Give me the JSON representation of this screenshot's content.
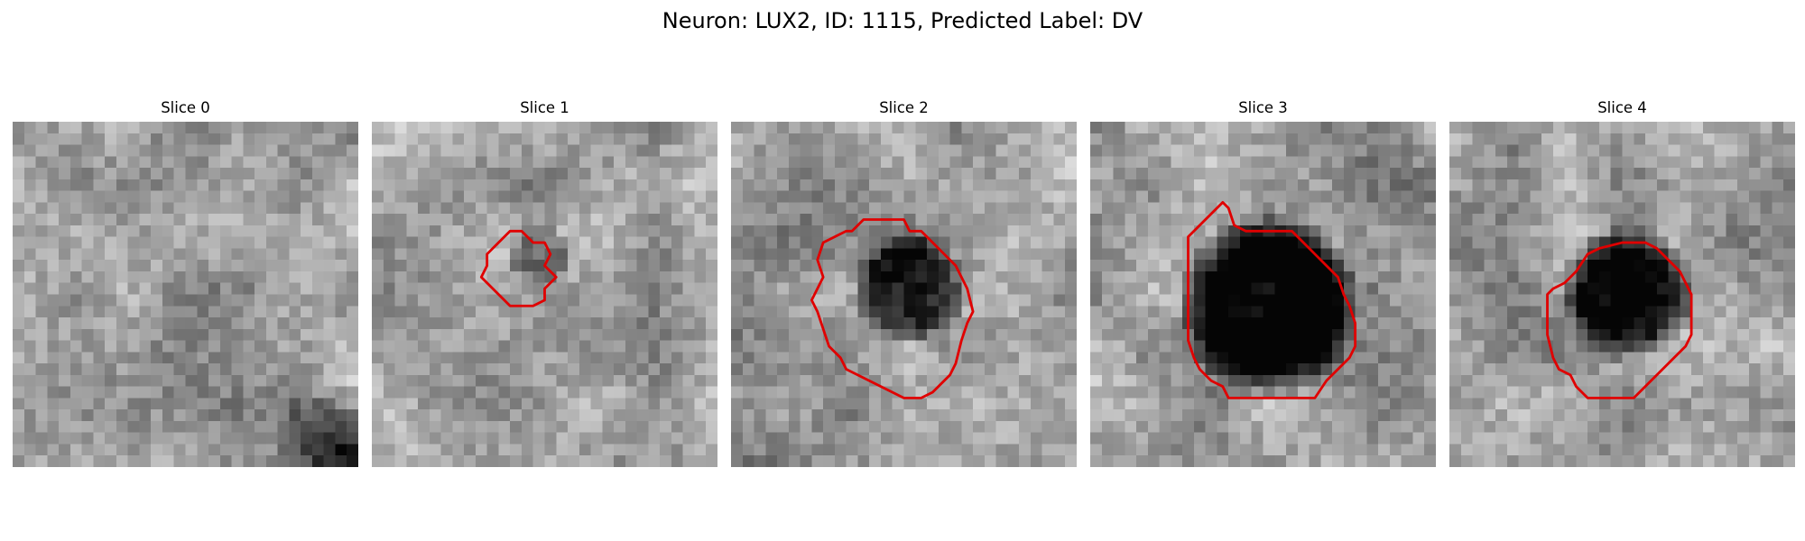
{
  "figure": {
    "title": "Neuron: LUX2, ID: 1115, Predicted Label: DV",
    "outline_color": "#e00000",
    "colormap": "grayscale",
    "panels": [
      {
        "title": "Slice 0",
        "blob": null,
        "contour": null,
        "dark_corner": true
      },
      {
        "title": "Slice 1",
        "blob": {
          "cx": 14.5,
          "cy": 11.5,
          "r": 2.8,
          "strength": 0.28
        },
        "contour": [
          [
            10,
            11.5
          ],
          [
            11,
            10.5
          ],
          [
            12,
            9.5
          ],
          [
            13,
            9.5
          ],
          [
            14,
            10.5
          ],
          [
            15,
            10.5
          ],
          [
            15.5,
            11.5
          ],
          [
            15,
            12.5
          ],
          [
            16,
            13.5
          ],
          [
            15,
            14.5
          ],
          [
            15,
            15.5
          ],
          [
            14,
            16
          ],
          [
            13,
            16
          ],
          [
            12,
            16
          ],
          [
            11,
            15
          ],
          [
            10,
            14
          ],
          [
            9.5,
            13.5
          ],
          [
            10,
            12.5
          ]
        ]
      },
      {
        "title": "Slice 2",
        "blob": {
          "cx": 15.5,
          "cy": 14.5,
          "r": 5.0,
          "strength": 0.55
        },
        "contour": [
          [
            10.5,
            9.5
          ],
          [
            11.5,
            8.5
          ],
          [
            12.5,
            8.5
          ],
          [
            14,
            8.5
          ],
          [
            15,
            8.5
          ],
          [
            15.5,
            9.5
          ],
          [
            16.5,
            9.5
          ],
          [
            17.5,
            10.5
          ],
          [
            18.5,
            11.5
          ],
          [
            19.5,
            12.5
          ],
          [
            20.5,
            14.5
          ],
          [
            21,
            16.5
          ],
          [
            20.5,
            17.5
          ],
          [
            20,
            19
          ],
          [
            19.5,
            21
          ],
          [
            19,
            22
          ],
          [
            18.5,
            22.5
          ],
          [
            17.5,
            23.5
          ],
          [
            16.5,
            24
          ],
          [
            15,
            24
          ],
          [
            14,
            23.5
          ],
          [
            13,
            23
          ],
          [
            12,
            22.5
          ],
          [
            11,
            22
          ],
          [
            10,
            21.5
          ],
          [
            9.5,
            20.5
          ],
          [
            8.5,
            19.5
          ],
          [
            8,
            18
          ],
          [
            7.5,
            16.5
          ],
          [
            7,
            15.5
          ],
          [
            7.5,
            14.5
          ],
          [
            8,
            13.5
          ],
          [
            7.5,
            12
          ],
          [
            8,
            10.5
          ],
          [
            9,
            10
          ],
          [
            10,
            9.5
          ]
        ]
      },
      {
        "title": "Slice 3",
        "blob": {
          "cx": 15.5,
          "cy": 16.0,
          "r": 8.0,
          "strength": 0.72
        },
        "contour": [
          [
            8.5,
            10
          ],
          [
            9.5,
            9
          ],
          [
            10.5,
            8
          ],
          [
            11.5,
            7
          ],
          [
            12,
            7.5
          ],
          [
            12.5,
            9
          ],
          [
            13.5,
            9.5
          ],
          [
            15,
            9.5
          ],
          [
            17.5,
            9.5
          ],
          [
            18.5,
            10.5
          ],
          [
            19.5,
            11.5
          ],
          [
            20.5,
            12.5
          ],
          [
            21.5,
            13.5
          ],
          [
            22,
            15
          ],
          [
            22.5,
            16
          ],
          [
            23,
            17.5
          ],
          [
            23,
            19
          ],
          [
            23,
            19.5
          ],
          [
            22.5,
            20.5
          ],
          [
            21.5,
            21.5
          ],
          [
            20.5,
            22.5
          ],
          [
            19.5,
            24
          ],
          [
            18.5,
            24
          ],
          [
            17,
            24
          ],
          [
            15,
            24
          ],
          [
            13,
            24
          ],
          [
            12,
            24
          ],
          [
            11.5,
            23
          ],
          [
            10.5,
            22.5
          ],
          [
            9.5,
            21.5
          ],
          [
            9,
            20.5
          ],
          [
            8.5,
            19
          ],
          [
            8.5,
            17
          ],
          [
            8.5,
            13
          ],
          [
            8.5,
            11
          ]
        ]
      },
      {
        "title": "Slice 4",
        "blob": {
          "cx": 15.5,
          "cy": 15.0,
          "r": 6.0,
          "strength": 0.6
        },
        "contour": [
          [
            10,
            14
          ],
          [
            11,
            13
          ],
          [
            12,
            11.5
          ],
          [
            13,
            11
          ],
          [
            15,
            10.5
          ],
          [
            17,
            10.5
          ],
          [
            18,
            11
          ],
          [
            19,
            12
          ],
          [
            20,
            13
          ],
          [
            20.5,
            14
          ],
          [
            21,
            15
          ],
          [
            21,
            18.5
          ],
          [
            20.5,
            19.5
          ],
          [
            19.5,
            20.5
          ],
          [
            18.5,
            21.5
          ],
          [
            17.5,
            22.5
          ],
          [
            16,
            24
          ],
          [
            14,
            24
          ],
          [
            12,
            24
          ],
          [
            11,
            23
          ],
          [
            10.5,
            22
          ],
          [
            9.5,
            21.5
          ],
          [
            9,
            20.5
          ],
          [
            8.5,
            18.5
          ],
          [
            8.5,
            15
          ],
          [
            9,
            14.5
          ]
        ]
      }
    ]
  }
}
